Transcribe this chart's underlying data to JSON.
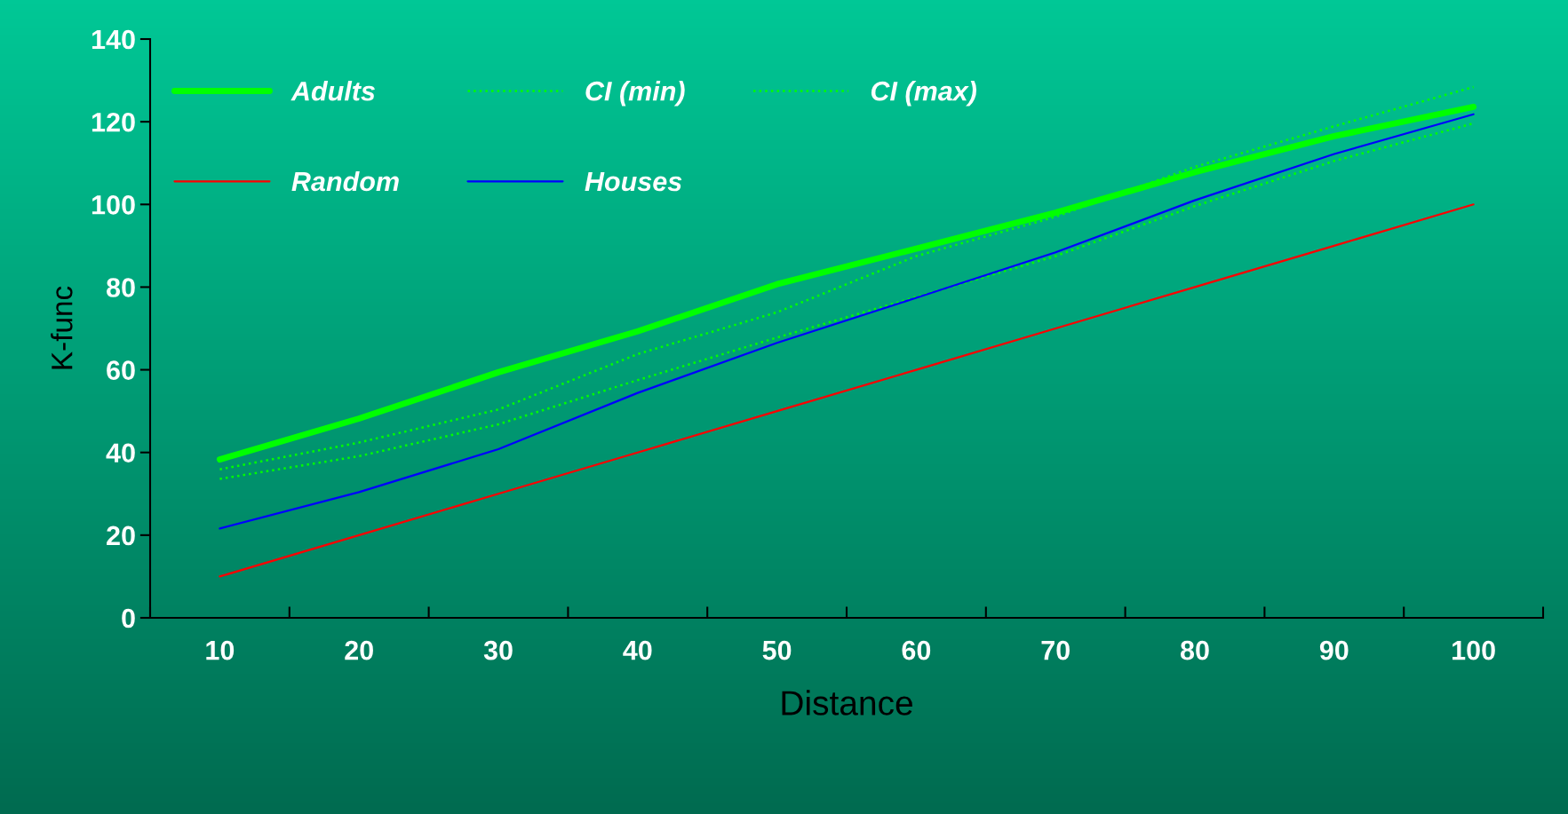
{
  "chart_data": {
    "type": "line",
    "xlabel": "Distance",
    "ylabel": "K-func",
    "categories": [
      "10",
      "20",
      "30",
      "40",
      "50",
      "60",
      "70",
      "80",
      "90",
      "100"
    ],
    "series": [
      {
        "name": "Adults",
        "color": "#00ff00",
        "line_style": "solid",
        "values": [
          38.3,
          48.2,
          59.4,
          69.3,
          80.7,
          89.3,
          98.0,
          107.8,
          116.5,
          123.6
        ]
      },
      {
        "name": "CI (min)",
        "color": "#00ff00",
        "line_style": "dotted",
        "values": [
          33.6,
          39.1,
          46.8,
          57.5,
          67.8,
          77.6,
          87.5,
          99.6,
          110.5,
          119.6
        ]
      },
      {
        "name": "CI (max)",
        "color": "#00ff00",
        "line_style": "dotted",
        "values": [
          35.9,
          42.4,
          50.4,
          63.8,
          73.9,
          87.5,
          97.0,
          109.1,
          118.9,
          128.4
        ]
      },
      {
        "name": "Random",
        "color": "#ff0000",
        "line_style": "solid",
        "values": [
          10,
          20,
          30,
          40,
          50,
          60,
          70,
          80,
          90,
          100
        ]
      },
      {
        "name": "Houses",
        "color": "#0000ff",
        "line_style": "solid",
        "values": [
          21.6,
          30.4,
          40.8,
          54.4,
          66.5,
          77.4,
          88.4,
          101.0,
          112.2,
          121.8
        ]
      }
    ],
    "ylim": [
      0,
      140
    ],
    "yticks": [
      0,
      20,
      40,
      60,
      80,
      100,
      120,
      140
    ],
    "grid": false,
    "legend": "top left",
    "marker": "none"
  }
}
